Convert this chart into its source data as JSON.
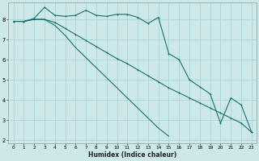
{
  "xlabel": "Humidex (Indice chaleur)",
  "bg_color": "#cce8e8",
  "grid_color": "#aad4d4",
  "line_color": "#1a7070",
  "xlim": [
    -0.5,
    23.5
  ],
  "ylim": [
    1.85,
    8.85
  ],
  "yticks": [
    2,
    3,
    4,
    5,
    6,
    7,
    8
  ],
  "xticks": [
    0,
    1,
    2,
    3,
    4,
    5,
    6,
    7,
    8,
    9,
    10,
    11,
    12,
    13,
    14,
    15,
    16,
    17,
    18,
    19,
    20,
    21,
    22,
    23
  ],
  "line1_x": [
    0,
    1,
    2,
    3,
    4,
    5,
    6,
    7,
    8,
    9,
    10,
    11,
    12,
    13,
    14,
    15,
    16,
    17,
    18,
    19,
    20,
    21,
    22,
    23
  ],
  "line1_y": [
    7.9,
    7.9,
    8.05,
    8.6,
    8.2,
    8.15,
    8.2,
    8.45,
    8.2,
    8.15,
    8.25,
    8.25,
    8.1,
    7.8,
    8.1,
    6.3,
    6.0,
    5.0,
    4.65,
    4.3,
    2.85,
    4.1,
    3.75,
    2.4
  ],
  "line2_x": [
    0,
    1,
    2,
    3,
    4,
    5,
    6,
    7,
    8,
    9,
    10,
    11,
    12,
    13,
    14,
    15,
    16,
    17,
    18,
    19,
    20,
    21,
    22,
    23
  ],
  "line2_y": [
    7.9,
    7.9,
    8.0,
    8.0,
    7.85,
    7.55,
    7.25,
    6.95,
    6.65,
    6.35,
    6.05,
    5.8,
    5.5,
    5.2,
    4.9,
    4.6,
    4.35,
    4.1,
    3.85,
    3.6,
    3.35,
    3.1,
    2.85,
    2.4
  ],
  "line3_x": [
    0,
    1,
    2,
    3,
    4,
    5,
    6,
    7,
    8,
    9,
    10,
    11,
    12,
    13,
    14,
    15
  ],
  "line3_y": [
    7.9,
    7.9,
    8.0,
    8.0,
    7.7,
    7.2,
    6.6,
    6.1,
    5.6,
    5.1,
    4.6,
    4.1,
    3.6,
    3.1,
    2.6,
    2.2
  ]
}
